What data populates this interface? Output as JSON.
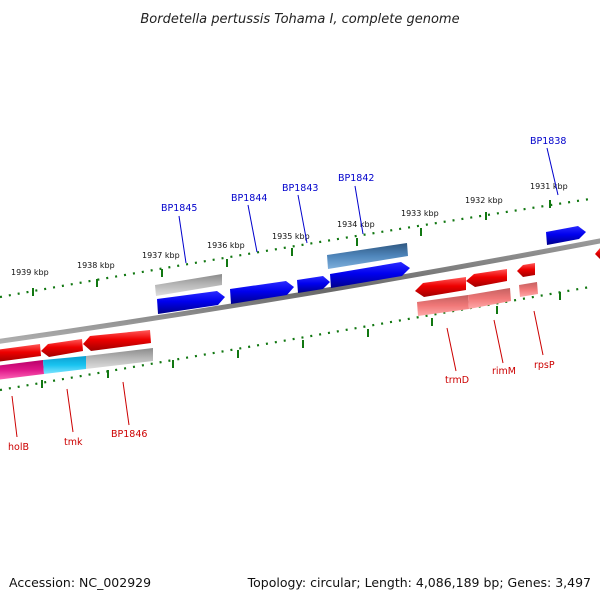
{
  "title": "Bordetella pertussis Tohama I, complete genome",
  "accession": "Accession: NC_002929",
  "summary": "Topology: circular; Length: 4,086,189 bp; Genes: 3,497",
  "colors": {
    "backbone": "#7f7f7f",
    "ticks": "#117711",
    "plus_gene": "#0000ee",
    "plus_gene_alt": "#3d6f9f",
    "minus_gene": "#ee0000",
    "minus_gene_pale": "#f07878",
    "minus_gene_magenta": "#e0188a",
    "minus_gene_cyan": "#19c3f0",
    "pseudo_gray": "#b0b0b0",
    "plus_label": "#0000cc",
    "minus_label": "#cc0000"
  },
  "scale": {
    "tick_labels": [
      "1939 kbp",
      "1938 kbp",
      "1937 kbp",
      "1936 kbp",
      "1935 kbp",
      "1934 kbp",
      "1933 kbp",
      "1932 kbp",
      "1931 kbp"
    ]
  },
  "plus_strand_labels": [
    "BP1845",
    "BP1844",
    "BP1843",
    "BP1842",
    "BP1838"
  ],
  "minus_strand_labels": [
    "holB",
    "tmk",
    "BP1846",
    "trmD",
    "rimM",
    "rpsP"
  ]
}
